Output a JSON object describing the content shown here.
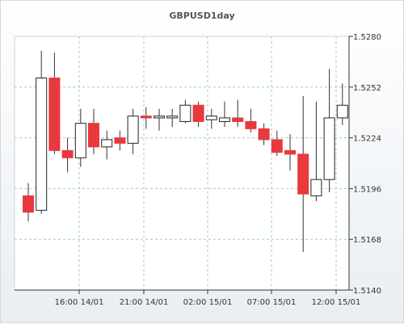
{
  "chart_data": {
    "type": "candlestick",
    "title": "GBPUSD1day",
    "ylim": [
      1.514,
      1.528
    ],
    "y_ticks": [
      "1.5280",
      "1.5252",
      "1.5224",
      "1.5196",
      "1.5168",
      "1.5140"
    ],
    "x_ticks": [
      "16:00 14/01",
      "21:00 14/01",
      "02:00 15/01",
      "07:00 15/01",
      "12:00 15/01"
    ],
    "grid": true,
    "colors": {
      "bull_fill": "#ffffff",
      "bear_fill": "#e8393d",
      "wick": "#333333"
    },
    "candles": [
      {
        "open": 1.5192,
        "high": 1.5199,
        "low": 1.5178,
        "close": 1.5183
      },
      {
        "open": 1.5184,
        "high": 1.5272,
        "low": 1.5182,
        "close": 1.5257
      },
      {
        "open": 1.5257,
        "high": 1.5271,
        "low": 1.5215,
        "close": 1.5217
      },
      {
        "open": 1.5217,
        "high": 1.5224,
        "low": 1.5205,
        "close": 1.5213
      },
      {
        "open": 1.5213,
        "high": 1.524,
        "low": 1.5208,
        "close": 1.5232
      },
      {
        "open": 1.5232,
        "high": 1.524,
        "low": 1.5215,
        "close": 1.5219
      },
      {
        "open": 1.5219,
        "high": 1.5228,
        "low": 1.5212,
        "close": 1.5223
      },
      {
        "open": 1.5224,
        "high": 1.5228,
        "low": 1.5217,
        "close": 1.5221
      },
      {
        "open": 1.5221,
        "high": 1.524,
        "low": 1.5215,
        "close": 1.5236
      },
      {
        "open": 1.5236,
        "high": 1.5241,
        "low": 1.5229,
        "close": 1.5235
      },
      {
        "open": 1.5235,
        "high": 1.524,
        "low": 1.5228,
        "close": 1.5236
      },
      {
        "open": 1.5235,
        "high": 1.524,
        "low": 1.523,
        "close": 1.5236
      },
      {
        "open": 1.5233,
        "high": 1.5245,
        "low": 1.5232,
        "close": 1.5242
      },
      {
        "open": 1.5242,
        "high": 1.5244,
        "low": 1.523,
        "close": 1.5233
      },
      {
        "open": 1.5234,
        "high": 1.524,
        "low": 1.5229,
        "close": 1.5236
      },
      {
        "open": 1.5233,
        "high": 1.5244,
        "low": 1.523,
        "close": 1.5235
      },
      {
        "open": 1.5235,
        "high": 1.5245,
        "low": 1.523,
        "close": 1.5233
      },
      {
        "open": 1.5233,
        "high": 1.524,
        "low": 1.5227,
        "close": 1.5229
      },
      {
        "open": 1.5229,
        "high": 1.5232,
        "low": 1.522,
        "close": 1.5223
      },
      {
        "open": 1.5223,
        "high": 1.5228,
        "low": 1.5214,
        "close": 1.5216
      },
      {
        "open": 1.5217,
        "high": 1.5226,
        "low": 1.5206,
        "close": 1.5215
      },
      {
        "open": 1.5215,
        "high": 1.5247,
        "low": 1.5161,
        "close": 1.5193
      },
      {
        "open": 1.5192,
        "high": 1.5244,
        "low": 1.5189,
        "close": 1.5201
      },
      {
        "open": 1.5201,
        "high": 1.5262,
        "low": 1.5194,
        "close": 1.5235
      },
      {
        "open": 1.5235,
        "high": 1.5254,
        "low": 1.5231,
        "close": 1.5242
      }
    ]
  }
}
